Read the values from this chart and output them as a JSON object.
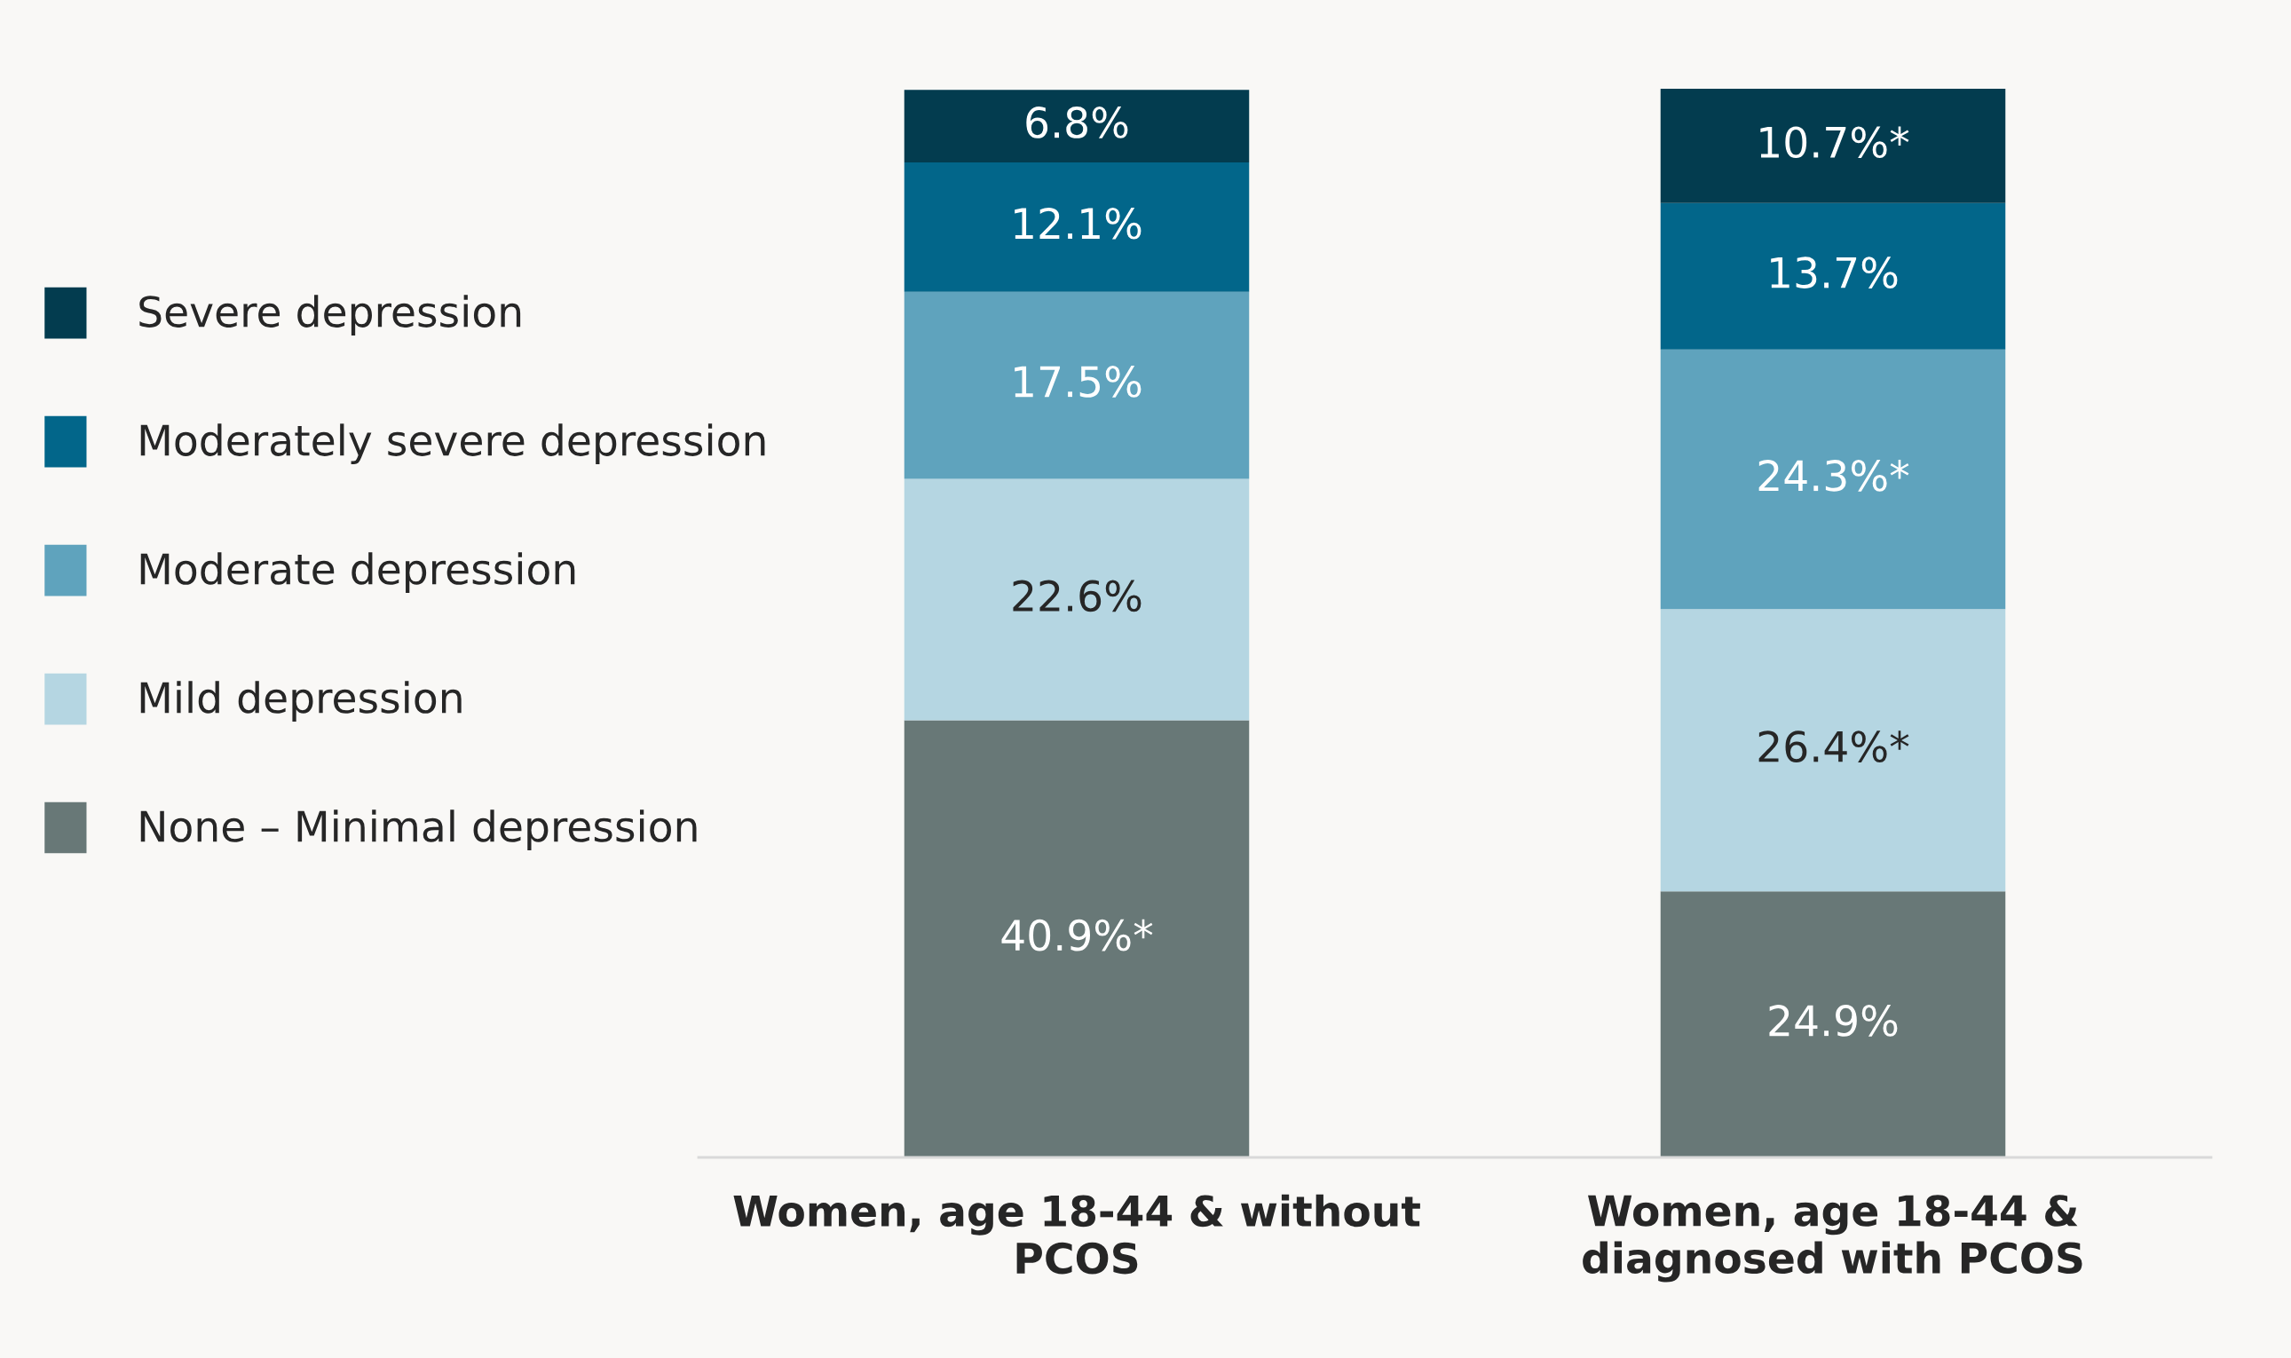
{
  "chart_data": {
    "type": "bar",
    "stacked": true,
    "categories": [
      "Women, age 18-44 & without PCOS",
      "Women, age 18-44 & diagnosed with PCOS"
    ],
    "legend": "left",
    "series": [
      {
        "name": "None – Minimal depression",
        "color": "#687877",
        "values": [
          40.9,
          24.9
        ],
        "value_labels": [
          "40.9%*",
          "24.9%"
        ]
      },
      {
        "name": "Mild depression",
        "color": "#b5d6e2",
        "values": [
          22.6,
          26.4
        ],
        "value_labels": [
          "22.6%",
          "26.4%*"
        ]
      },
      {
        "name": "Moderate depression",
        "color": "#5fa3bd",
        "values": [
          17.5,
          24.3
        ],
        "value_labels": [
          "17.5%",
          "24.3%*"
        ]
      },
      {
        "name": "Moderately severe depression",
        "color": "#02668a",
        "values": [
          12.1,
          13.7
        ],
        "value_labels": [
          "12.1%",
          "13.7%"
        ]
      },
      {
        "name": "Severe depression",
        "color": "#033c4f",
        "values": [
          6.8,
          10.7
        ],
        "value_labels": [
          "6.8%",
          "10.7%*"
        ]
      }
    ]
  }
}
